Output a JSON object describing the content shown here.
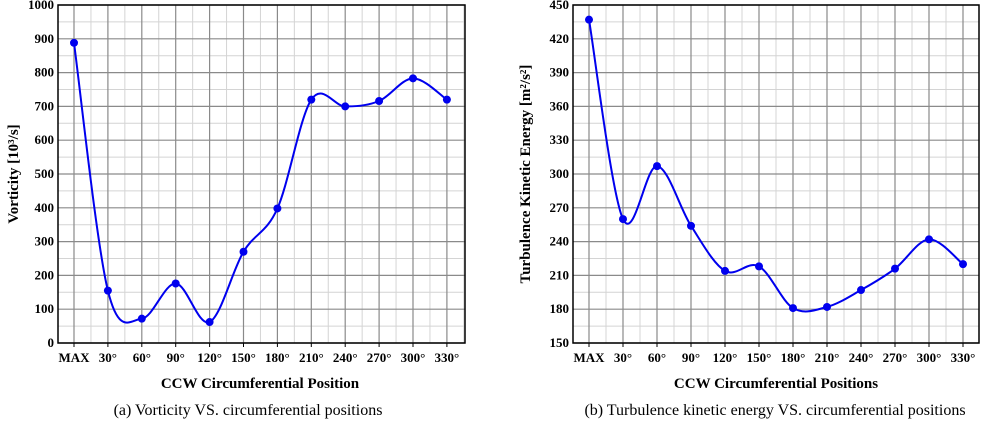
{
  "chart_data": [
    {
      "type": "line",
      "categories": [
        "MAX",
        "30°",
        "60°",
        "90°",
        "120°",
        "150°",
        "180°",
        "210°",
        "240°",
        "270°",
        "300°",
        "330°"
      ],
      "series": [
        {
          "values": [
            888,
            155,
            72,
            176,
            62,
            270,
            398,
            720,
            700,
            716,
            783,
            720
          ]
        }
      ],
      "xlabel": "CCW Circumferential Position",
      "ylabel": "Vorticity [10³/s]",
      "ylim": [
        0,
        1000
      ],
      "yticks": [
        0,
        100,
        200,
        300,
        400,
        500,
        600,
        700,
        800,
        900,
        1000
      ],
      "caption": "(a) Vorticity VS. circumferential positions",
      "grid": true,
      "color": "#0000ee",
      "smoothed": true
    },
    {
      "type": "line",
      "categories": [
        "MAX",
        "30°",
        "60°",
        "90°",
        "120°",
        "150°",
        "180°",
        "210°",
        "240°",
        "270°",
        "300°",
        "330°"
      ],
      "series": [
        {
          "values": [
            437,
            260,
            307,
            254,
            214,
            218,
            181,
            182,
            197,
            216,
            242,
            220
          ]
        }
      ],
      "xlabel": "CCW Circumferential Positions",
      "ylabel": "Turbulence Kinetic Energy [m²/s²]",
      "ylim": [
        150,
        450
      ],
      "yticks": [
        150,
        180,
        210,
        240,
        270,
        300,
        330,
        360,
        390,
        420,
        450
      ],
      "caption": "(b) Turbulence kinetic energy VS. circumferential positions",
      "grid": true,
      "color": "#0000ee",
      "smoothed": true
    }
  ]
}
